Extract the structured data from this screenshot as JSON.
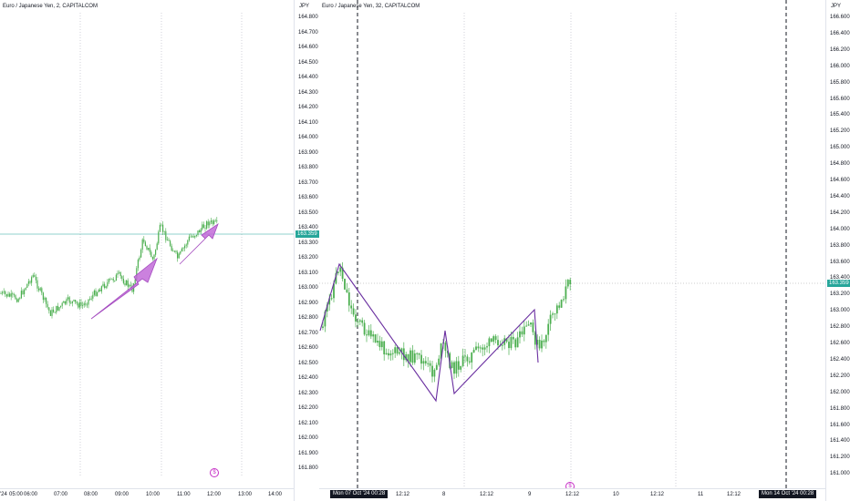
{
  "left_chart": {
    "title": "Euro / Japanese Yen, 2, CAPITALCOM",
    "time_labels": [
      "'24",
      "05:00",
      "06:00",
      "07:00",
      "08:00",
      "09:00",
      "10:00",
      "11:00",
      "12:00",
      "13:00",
      "14:00"
    ],
    "event_icon": "dividend-event-icon"
  },
  "left_axis": {
    "unit": "JPY",
    "price_labels": [
      "164.800",
      "164.700",
      "164.600",
      "164.500",
      "164.400",
      "164.300",
      "164.200",
      "164.100",
      "164.000",
      "163.900",
      "163.800",
      "163.700",
      "163.600",
      "163.500",
      "163.400",
      "163.300",
      "163.200",
      "163.100",
      "163.000",
      "162.900",
      "162.800",
      "162.700",
      "162.600",
      "162.500",
      "162.400",
      "162.300",
      "162.200",
      "162.100",
      "162.000",
      "161.900",
      "161.800"
    ],
    "last_price": "163.359"
  },
  "right_chart": {
    "title": "Euro / Japanese Yen, 32, CAPITALCOM",
    "time_labels": [
      "12:12",
      "8",
      "12:12",
      "9",
      "12:12",
      "10",
      "12:12",
      "11",
      "12:12"
    ],
    "time_tag_1": "Mon 07 Oct '24   00:28",
    "time_tag_2": "Mon 14 Oct '24   00:28",
    "event_icon": "dividend-event-icon"
  },
  "right_axis": {
    "unit": "JPY",
    "price_labels": [
      "166.600",
      "166.400",
      "166.200",
      "166.000",
      "165.800",
      "165.600",
      "165.400",
      "165.200",
      "165.000",
      "164.800",
      "164.600",
      "164.400",
      "164.200",
      "164.000",
      "163.800",
      "163.600",
      "163.400",
      "163.200",
      "163.000",
      "162.800",
      "162.600",
      "162.400",
      "162.200",
      "162.000",
      "161.800",
      "161.600",
      "161.400",
      "161.200",
      "161.000"
    ],
    "last_price": "163.359"
  },
  "colors": {
    "bull": "#4caf50",
    "bear": "#4caf50",
    "drawing": "#6a2fa0",
    "arrow": "#c26bd8",
    "price_line": "#26a69a"
  }
}
